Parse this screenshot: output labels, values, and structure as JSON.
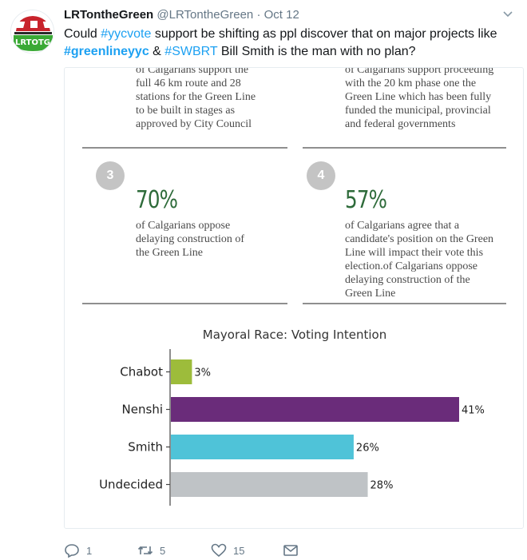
{
  "tweet": {
    "avatar_text": "LRTOTG",
    "display_name": "LRTontheGreen",
    "handle": "@LRTontheGreen",
    "separator": "·",
    "time": "Oct 12",
    "text_1": "Could ",
    "tag_1": "#yycvote",
    "text_2": " support be shifting as ppl discover that on major projects like ",
    "tag_2": "#greenlineyyc",
    "text_3": " &  ",
    "tag_3": "#SWBRT",
    "text_4": " Bill Smith is the man with no plan?"
  },
  "infographic": {
    "stat1_text": [
      "of Calgarians support the",
      "full 46 km route and 28",
      "stations for the Green Line",
      "to be built in stages as",
      "approved by City Council"
    ],
    "stat2_text": [
      "of Calgarians support proceeding",
      "with the 20 km phase one the",
      "Green Line which has been fully",
      "funded  the municipal, provincial",
      "and federal governments"
    ],
    "stat3_number": "3",
    "stat3_pct": "70%",
    "stat3_text": [
      "of Calgarians oppose",
      "delaying construction of",
      "the Green Line"
    ],
    "stat4_number": "4",
    "stat4_pct": "57%",
    "stat4_text": [
      "of Calgarians agree that a",
      "candidate's position on the Green",
      "Line will impact their vote this",
      "election.of Calgarians oppose",
      "delaying construction of the",
      "Green Line"
    ]
  },
  "chart_data": {
    "type": "bar",
    "orientation": "horizontal",
    "title": "Mayoral Race: Voting Intention",
    "categories": [
      "Chabot",
      "Nenshi",
      "Smith",
      "Undecided"
    ],
    "values": [
      3,
      41,
      26,
      28
    ],
    "value_labels": [
      "3%",
      "41%",
      "26%",
      "28%"
    ],
    "colors": [
      "#9dbc3b",
      "#6a2c7a",
      "#4fc3d8",
      "#bfc3c6"
    ],
    "xlim": [
      0,
      41
    ],
    "grid": false,
    "legend": "none"
  },
  "actions": {
    "reply_count": "1",
    "retweet_count": "5",
    "like_count": "15"
  },
  "colors": {
    "link": "#1da1f2",
    "muted": "#657786",
    "green_stat": "#2e6b3a"
  }
}
